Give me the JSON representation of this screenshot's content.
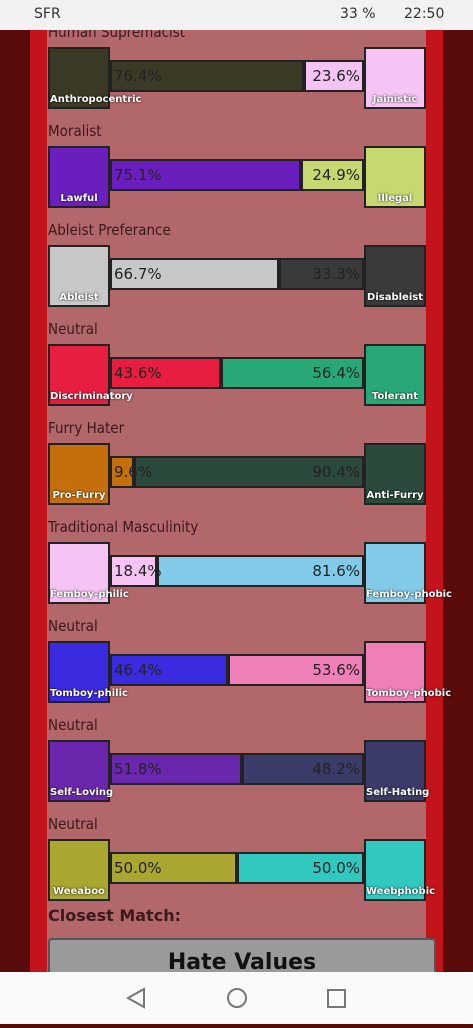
{
  "status_bar": {
    "carrier": "SFR",
    "battery": "33 %",
    "time": "22:50"
  },
  "axes": [
    {
      "title": "Human Supremacist",
      "left": {
        "name": "Anthropocentric",
        "value": 76.4,
        "label": "76.4%",
        "color": "#3b3a27"
      },
      "right": {
        "name": "Jainistic",
        "value": 23.6,
        "label": "23.6%",
        "color": "#f6c4f4"
      }
    },
    {
      "title": "Moralist",
      "left": {
        "name": "Lawful",
        "value": 75.1,
        "label": "75.1%",
        "color": "#6a1ebe"
      },
      "right": {
        "name": "Illegal",
        "value": 24.9,
        "label": "24.9%",
        "color": "#c7d870"
      }
    },
    {
      "title": "Ableist Preferance",
      "left": {
        "name": "Ableist",
        "value": 66.7,
        "label": "66.7%",
        "color": "#c8c8c8"
      },
      "right": {
        "name": "Disableist",
        "value": 33.3,
        "label": "33.3%",
        "color": "#3a3a3a"
      }
    },
    {
      "title": "Neutral",
      "left": {
        "name": "Discriminatory",
        "value": 43.6,
        "label": "43.6%",
        "color": "#e81e40"
      },
      "right": {
        "name": "Tolerant",
        "value": 56.4,
        "label": "56.4%",
        "color": "#29a877"
      }
    },
    {
      "title": "Furry Hater",
      "left": {
        "name": "Pro-Furry",
        "value": 9.6,
        "label": "9.6%",
        "color": "#c46f0c"
      },
      "right": {
        "name": "Anti-Furry",
        "value": 90.4,
        "label": "90.4%",
        "color": "#2b4a3b"
      }
    },
    {
      "title": "Traditional Masculinity",
      "left": {
        "name": "Femboy-philic",
        "value": 18.4,
        "label": "18.4%",
        "color": "#f6c4f4"
      },
      "right": {
        "name": "Femboy-phobic",
        "value": 81.6,
        "label": "81.6%",
        "color": "#82cbe8"
      }
    },
    {
      "title": "Neutral",
      "left": {
        "name": "Tomboy-philic",
        "value": 46.4,
        "label": "46.4%",
        "color": "#3a2be0"
      },
      "right": {
        "name": "Tomboy-phobic",
        "value": 53.6,
        "label": "53.6%",
        "color": "#f07fb8"
      }
    },
    {
      "title": "Neutral",
      "left": {
        "name": "Self-Loving",
        "value": 51.8,
        "label": "51.8%",
        "color": "#6a27ae"
      },
      "right": {
        "name": "Self-Hating",
        "value": 48.2,
        "label": "48.2%",
        "color": "#3b3b6a"
      }
    },
    {
      "title": "Neutral",
      "left": {
        "name": "Weeaboo",
        "value": 50.0,
        "label": "50.0%",
        "color": "#a9a72f"
      },
      "right": {
        "name": "Weebphobic",
        "value": 50.0,
        "label": "50.0%",
        "color": "#31c8bf"
      }
    }
  ],
  "closest_match": {
    "heading": "Closest Match:",
    "name": "Hate Values"
  }
}
